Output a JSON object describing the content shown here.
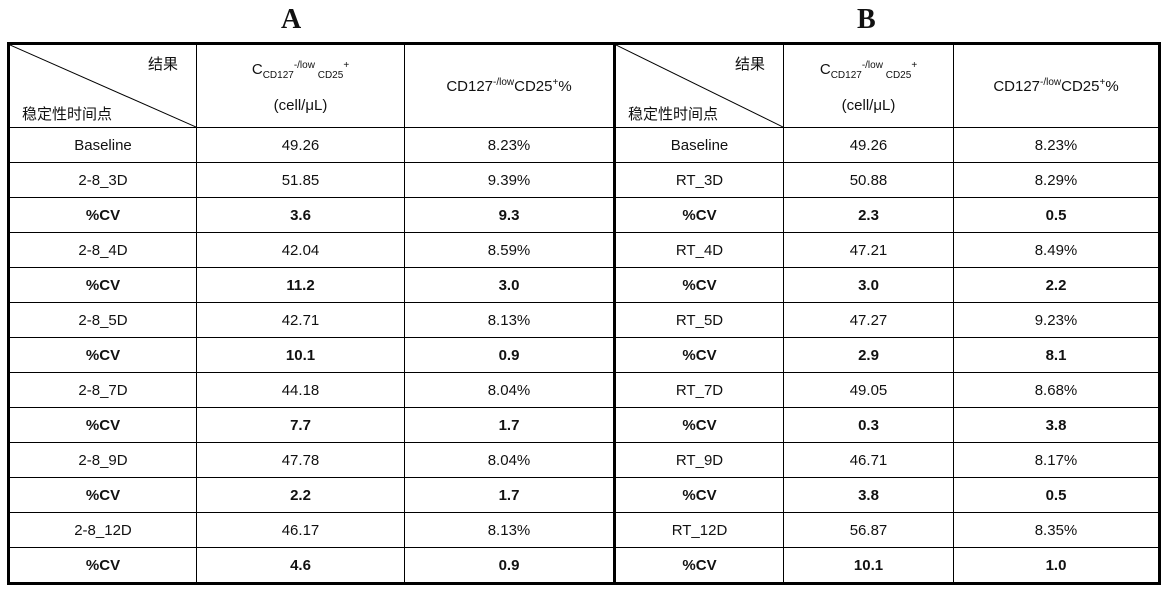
{
  "panels": [
    {
      "label": "A",
      "header": {
        "corner_result": "结果",
        "corner_timepoint": "稳定性时间点",
        "col1_prefix": "C",
        "col1_sub1": "CD127",
        "col1_sup1": "-/low",
        "col1_sub2": " CD25",
        "col1_sup2": "+",
        "col1_unit": "(cell/μL)",
        "col2_main": "CD127",
        "col2_sup1": "-/low",
        "col2_mid": "CD25",
        "col2_sup2": "+",
        "col2_end": "%"
      },
      "rows": [
        {
          "t": "Baseline",
          "c": "49.26",
          "p": "8.23%"
        },
        {
          "t": "2-8_3D",
          "c": "51.85",
          "p": "9.39%"
        },
        {
          "t": "%CV",
          "c": "3.6",
          "p": "9.3"
        },
        {
          "t": "2-8_4D",
          "c": "42.04",
          "p": "8.59%"
        },
        {
          "t": "%CV",
          "c": "11.2",
          "p": "3.0"
        },
        {
          "t": "2-8_5D",
          "c": "42.71",
          "p": "8.13%"
        },
        {
          "t": "%CV",
          "c": "10.1",
          "p": "0.9"
        },
        {
          "t": "2-8_7D",
          "c": "44.18",
          "p": "8.04%"
        },
        {
          "t": "%CV",
          "c": "7.7",
          "p": "1.7"
        },
        {
          "t": "2-8_9D",
          "c": "47.78",
          "p": "8.04%"
        },
        {
          "t": "%CV",
          "c": "2.2",
          "p": "1.7"
        },
        {
          "t": "2-8_12D",
          "c": "46.17",
          "p": "8.13%"
        },
        {
          "t": "%CV",
          "c": "4.6",
          "p": "0.9"
        }
      ]
    },
    {
      "label": "B",
      "header": {
        "corner_result": "结果",
        "corner_timepoint": "稳定性时间点",
        "col1_prefix": "C",
        "col1_sub1": "CD127",
        "col1_sup1": "-/low",
        "col1_sub2": " CD25",
        "col1_sup2": "+",
        "col1_unit": "(cell/μL)",
        "col2_main": "CD127",
        "col2_sup1": "-/low",
        "col2_mid": "CD25",
        "col2_sup2": "+",
        "col2_end": "%"
      },
      "rows": [
        {
          "t": "Baseline",
          "c": "49.26",
          "p": "8.23%"
        },
        {
          "t": "RT_3D",
          "c": "50.88",
          "p": "8.29%"
        },
        {
          "t": "%CV",
          "c": "2.3",
          "p": "0.5"
        },
        {
          "t": "RT_4D",
          "c": "47.21",
          "p": "8.49%"
        },
        {
          "t": "%CV",
          "c": "3.0",
          "p": "2.2"
        },
        {
          "t": "RT_5D",
          "c": "47.27",
          "p": "9.23%"
        },
        {
          "t": "%CV",
          "c": "2.9",
          "p": "8.1"
        },
        {
          "t": "RT_7D",
          "c": "49.05",
          "p": "8.68%"
        },
        {
          "t": "%CV",
          "c": "0.3",
          "p": "3.8"
        },
        {
          "t": "RT_9D",
          "c": "46.71",
          "p": "8.17%"
        },
        {
          "t": "%CV",
          "c": "3.8",
          "p": "0.5"
        },
        {
          "t": "RT_12D",
          "c": "56.87",
          "p": "8.35%"
        },
        {
          "t": "%CV",
          "c": "10.1",
          "p": "1.0"
        }
      ]
    }
  ]
}
